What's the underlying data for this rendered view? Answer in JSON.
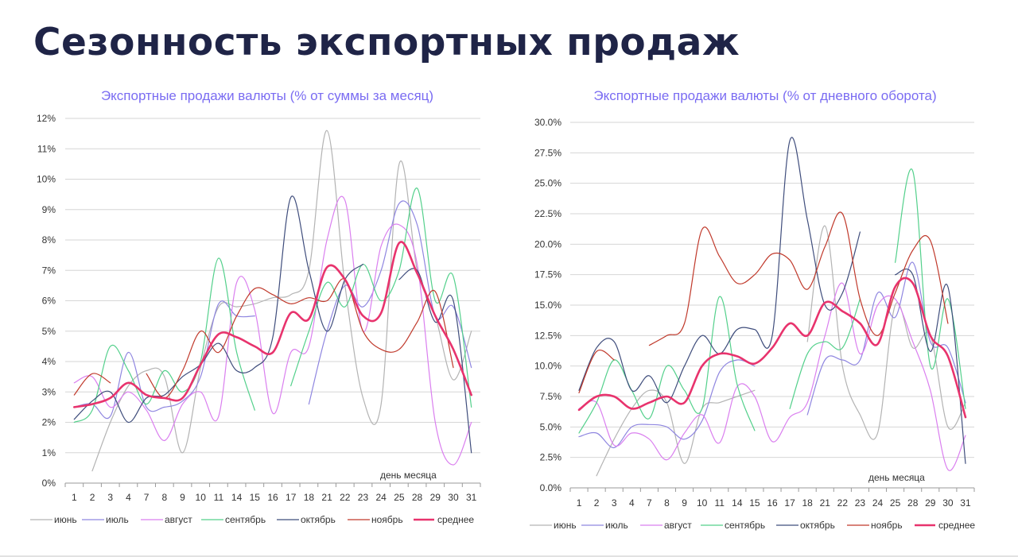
{
  "page": {
    "title": "Сезонность экспортных продаж"
  },
  "chart_data": [
    {
      "type": "line",
      "title": "Экспортные продажи валюты (% от суммы за месяц)",
      "xlabel": "день месяца",
      "ylabel": "",
      "categories": [
        "1",
        "2",
        "3",
        "4",
        "7",
        "8",
        "9",
        "10",
        "11",
        "14",
        "15",
        "16",
        "17",
        "18",
        "21",
        "22",
        "23",
        "24",
        "25",
        "28",
        "29",
        "30",
        "31"
      ],
      "ylim": [
        0,
        12
      ],
      "yticks": [
        0,
        1,
        2,
        3,
        4,
        5,
        6,
        7,
        8,
        9,
        10,
        11,
        12
      ],
      "ytick_labels": [
        "0%",
        "1%",
        "2%",
        "3%",
        "4%",
        "5%",
        "6%",
        "7%",
        "8%",
        "9%",
        "10%",
        "11%",
        "12%"
      ],
      "grid": true,
      "legend_position": "bottom",
      "series": [
        {
          "name": "июнь",
          "color": "#b3b3b3",
          "width": 1.2,
          "values": [
            null,
            0.4,
            2.0,
            3.2,
            3.7,
            3.5,
            1.0,
            3.8,
            5.8,
            5.8,
            5.9,
            6.1,
            6.2,
            7.0,
            11.6,
            6.5,
            2.8,
            2.6,
            10.5,
            7.0,
            5.5,
            3.4,
            5.0
          ]
        },
        {
          "name": "июль",
          "color": "#8f86e0",
          "width": 1.2,
          "values": [
            2.5,
            2.6,
            2.2,
            4.3,
            2.5,
            2.5,
            2.7,
            3.5,
            5.9,
            5.5,
            5.5,
            null,
            null,
            2.6,
            5.0,
            6.5,
            5.8,
            7.0,
            9.2,
            8.5,
            5.5,
            5.8,
            3.8
          ]
        },
        {
          "name": "август",
          "color": "#da7fef",
          "width": 1.2,
          "values": [
            3.3,
            3.5,
            2.5,
            3.0,
            2.4,
            1.4,
            2.6,
            3.0,
            2.2,
            6.6,
            5.7,
            2.3,
            4.3,
            4.5,
            8.0,
            9.3,
            5.0,
            7.8,
            8.5,
            7.2,
            2.0,
            0.6,
            2.0
          ]
        },
        {
          "name": "сентябрь",
          "color": "#53d08b",
          "width": 1.2,
          "values": [
            2.0,
            2.4,
            4.5,
            3.7,
            2.6,
            3.7,
            3.0,
            4.0,
            7.4,
            4.3,
            2.4,
            null,
            3.2,
            5.0,
            6.6,
            5.8,
            7.2,
            6.0,
            7.0,
            9.7,
            6.0,
            6.8,
            2.5
          ]
        },
        {
          "name": "октябрь",
          "color": "#3f4d7c",
          "width": 1.2,
          "values": [
            2.1,
            2.7,
            3.0,
            2.0,
            2.8,
            2.9,
            3.5,
            3.9,
            4.6,
            3.7,
            3.8,
            4.8,
            9.4,
            7.0,
            5.0,
            6.7,
            7.2,
            null,
            6.7,
            7.0,
            5.3,
            6.0,
            1.0
          ]
        },
        {
          "name": "ноябрь",
          "color": "#c0392b",
          "width": 1.2,
          "values": [
            2.9,
            3.6,
            3.3,
            null,
            3.6,
            2.8,
            3.7,
            5.0,
            4.3,
            5.5,
            6.4,
            6.2,
            5.9,
            6.1,
            6.0,
            6.7,
            5.0,
            4.4,
            4.4,
            5.3,
            6.3,
            3.8,
            null
          ]
        },
        {
          "name": "среднее",
          "color": "#e8336d",
          "width": 2.6,
          "values": [
            2.5,
            2.6,
            2.8,
            3.3,
            2.9,
            2.8,
            2.8,
            3.9,
            4.9,
            4.8,
            4.5,
            4.3,
            5.6,
            5.4,
            7.1,
            6.7,
            5.5,
            5.6,
            7.9,
            6.9,
            5.5,
            4.4,
            2.9
          ]
        }
      ]
    },
    {
      "type": "line",
      "title": "Экспортные продажи валюты (% от дневного оборота)",
      "xlabel": "день месяца",
      "ylabel": "",
      "categories": [
        "1",
        "2",
        "3",
        "4",
        "7",
        "8",
        "9",
        "10",
        "11",
        "14",
        "15",
        "16",
        "17",
        "18",
        "21",
        "22",
        "23",
        "24",
        "25",
        "28",
        "29",
        "30",
        "31"
      ],
      "ylim": [
        0,
        30
      ],
      "yticks": [
        0,
        2.5,
        5,
        7.5,
        10,
        12.5,
        15,
        17.5,
        20,
        22.5,
        25,
        27.5,
        30
      ],
      "ytick_labels": [
        "0.0%",
        "2.5%",
        "5.0%",
        "7.5%",
        "10.0%",
        "12.5%",
        "15.0%",
        "17.5%",
        "20.0%",
        "22.5%",
        "25.0%",
        "27.5%",
        "30.0%"
      ],
      "grid": true,
      "legend_position": "bottom",
      "series": [
        {
          "name": "июнь",
          "color": "#b3b3b3",
          "width": 1.2,
          "values": [
            null,
            1.0,
            4.0,
            6.5,
            8.0,
            7.0,
            2.0,
            6.5,
            7.0,
            7.5,
            8.0,
            null,
            null,
            12.0,
            21.5,
            10.0,
            6.0,
            4.5,
            15.0,
            11.5,
            12.5,
            5.0,
            7.0
          ]
        },
        {
          "name": "июль",
          "color": "#8f86e0",
          "width": 1.2,
          "values": [
            4.2,
            4.5,
            3.3,
            5.0,
            5.2,
            5.0,
            4.0,
            5.5,
            9.5,
            10.5,
            10.0,
            null,
            null,
            6.0,
            10.5,
            10.5,
            10.5,
            16.0,
            14.0,
            18.5,
            12.0,
            11.5,
            7.0
          ]
        },
        {
          "name": "август",
          "color": "#da7fef",
          "width": 1.2,
          "values": [
            6.5,
            7.0,
            3.5,
            4.5,
            4.0,
            2.3,
            4.5,
            6.0,
            3.7,
            8.3,
            7.5,
            3.8,
            5.8,
            7.0,
            12.5,
            16.8,
            11.0,
            15.0,
            15.5,
            12.0,
            8.0,
            1.5,
            4.3
          ]
        },
        {
          "name": "сентябрь",
          "color": "#53d08b",
          "width": 1.2,
          "values": [
            4.5,
            7.0,
            10.5,
            8.0,
            5.7,
            10.0,
            8.0,
            6.5,
            15.7,
            8.5,
            4.7,
            null,
            6.5,
            11.0,
            12.0,
            11.5,
            15.5,
            null,
            18.5,
            26.0,
            10.0,
            15.5,
            6.5
          ]
        },
        {
          "name": "октябрь",
          "color": "#3f4d7c",
          "width": 1.2,
          "values": [
            8.0,
            11.5,
            12.0,
            8.0,
            9.2,
            7.0,
            10.0,
            12.5,
            11.0,
            13.0,
            13.0,
            12.5,
            28.5,
            22.0,
            15.0,
            16.0,
            21.0,
            null,
            17.5,
            17.5,
            11.2,
            16.5,
            2.0
          ]
        },
        {
          "name": "ноябрь",
          "color": "#c0392b",
          "width": 1.2,
          "values": [
            7.8,
            11.2,
            10.5,
            null,
            11.7,
            12.5,
            13.5,
            21.2,
            19.0,
            16.8,
            17.5,
            19.2,
            18.7,
            16.3,
            19.8,
            22.5,
            15.5,
            12.5,
            16.0,
            19.5,
            20.3,
            13.5,
            null
          ]
        },
        {
          "name": "среднее",
          "color": "#e8336d",
          "width": 2.6,
          "values": [
            6.4,
            7.5,
            7.5,
            6.5,
            7.0,
            7.5,
            7.0,
            10.0,
            11.0,
            10.8,
            10.2,
            11.5,
            13.5,
            12.5,
            15.2,
            14.5,
            13.5,
            11.8,
            16.5,
            16.8,
            12.5,
            10.8,
            5.8
          ]
        }
      ]
    }
  ]
}
